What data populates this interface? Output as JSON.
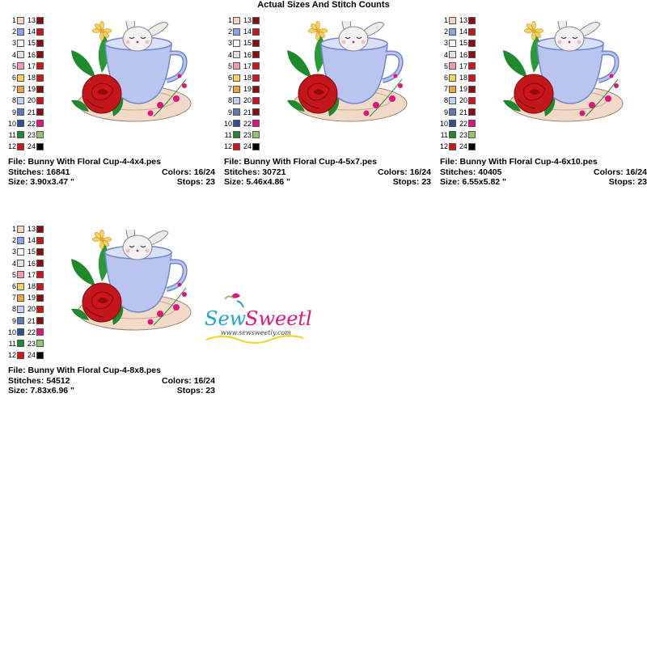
{
  "title": "Actual Sizes And Stitch Counts",
  "swatches": [
    {
      "a": "1",
      "ca": "#f7d3bf",
      "b": "13",
      "cb": "#8a0e10"
    },
    {
      "a": "2",
      "ca": "#8aa3e6",
      "b": "14",
      "cb": "#c3171b"
    },
    {
      "a": "3",
      "ca": "#ffffff",
      "b": "15",
      "cb": "#8a0e10"
    },
    {
      "a": "4",
      "ca": "#e1e1e1",
      "b": "16",
      "cb": "#8a0e10"
    },
    {
      "a": "5",
      "ca": "#f29ab0",
      "b": "17",
      "cb": "#d0141a"
    },
    {
      "a": "6",
      "ca": "#f7d25a",
      "b": "18",
      "cb": "#d0141a"
    },
    {
      "a": "7",
      "ca": "#f0a53a",
      "b": "19",
      "cb": "#8a0e10"
    },
    {
      "a": "8",
      "ca": "#c6cfef",
      "b": "20",
      "cb": "#d0141a"
    },
    {
      "a": "9",
      "ca": "#5e79b6",
      "b": "21",
      "cb": "#8a0e10"
    },
    {
      "a": "10",
      "ca": "#2f4e93",
      "b": "22",
      "cb": "#e0147e"
    },
    {
      "a": "11",
      "ca": "#1f8a2c",
      "b": "23",
      "cb": "#93c36b"
    },
    {
      "a": "12",
      "ca": "#d0141a",
      "b": "24",
      "cb": "#000000"
    }
  ],
  "designs": [
    {
      "file": "File: Bunny With Floral Cup-4-4x4.pes",
      "stitches": "Stitches: 16841",
      "colors": "Colors: 16/24",
      "size": "Size: 3.90x3.47 \"",
      "stops": "Stops: 23"
    },
    {
      "file": "File: Bunny With Floral Cup-4-5x7.pes",
      "stitches": "Stitches: 30721",
      "colors": "Colors: 16/24",
      "size": "Size: 5.46x4.86 \"",
      "stops": "Stops: 23"
    },
    {
      "file": "File: Bunny With Floral Cup-4-6x10.pes",
      "stitches": "Stitches: 40405",
      "colors": "Colors: 16/24",
      "size": "Size: 6.55x5.82 \"",
      "stops": "Stops: 23"
    },
    {
      "file": "File: Bunny With Floral Cup-4-8x8.pes",
      "stitches": "Stitches: 54512",
      "colors": "Colors: 16/24",
      "size": "Size: 7.83x6.96 \"",
      "stops": "Stops: 23"
    }
  ],
  "logo": {
    "brand": "Sew Sweetly",
    "url": "www.sewsweetly.com"
  },
  "colors": {
    "cup": "#b9c5ef",
    "cup_dark": "#6f87cf",
    "saucer": "#f1dac8",
    "rose": "#c3171b",
    "leaf": "#1f8a2c",
    "pink": "#e0147e",
    "daisy": "#f7d25a"
  }
}
